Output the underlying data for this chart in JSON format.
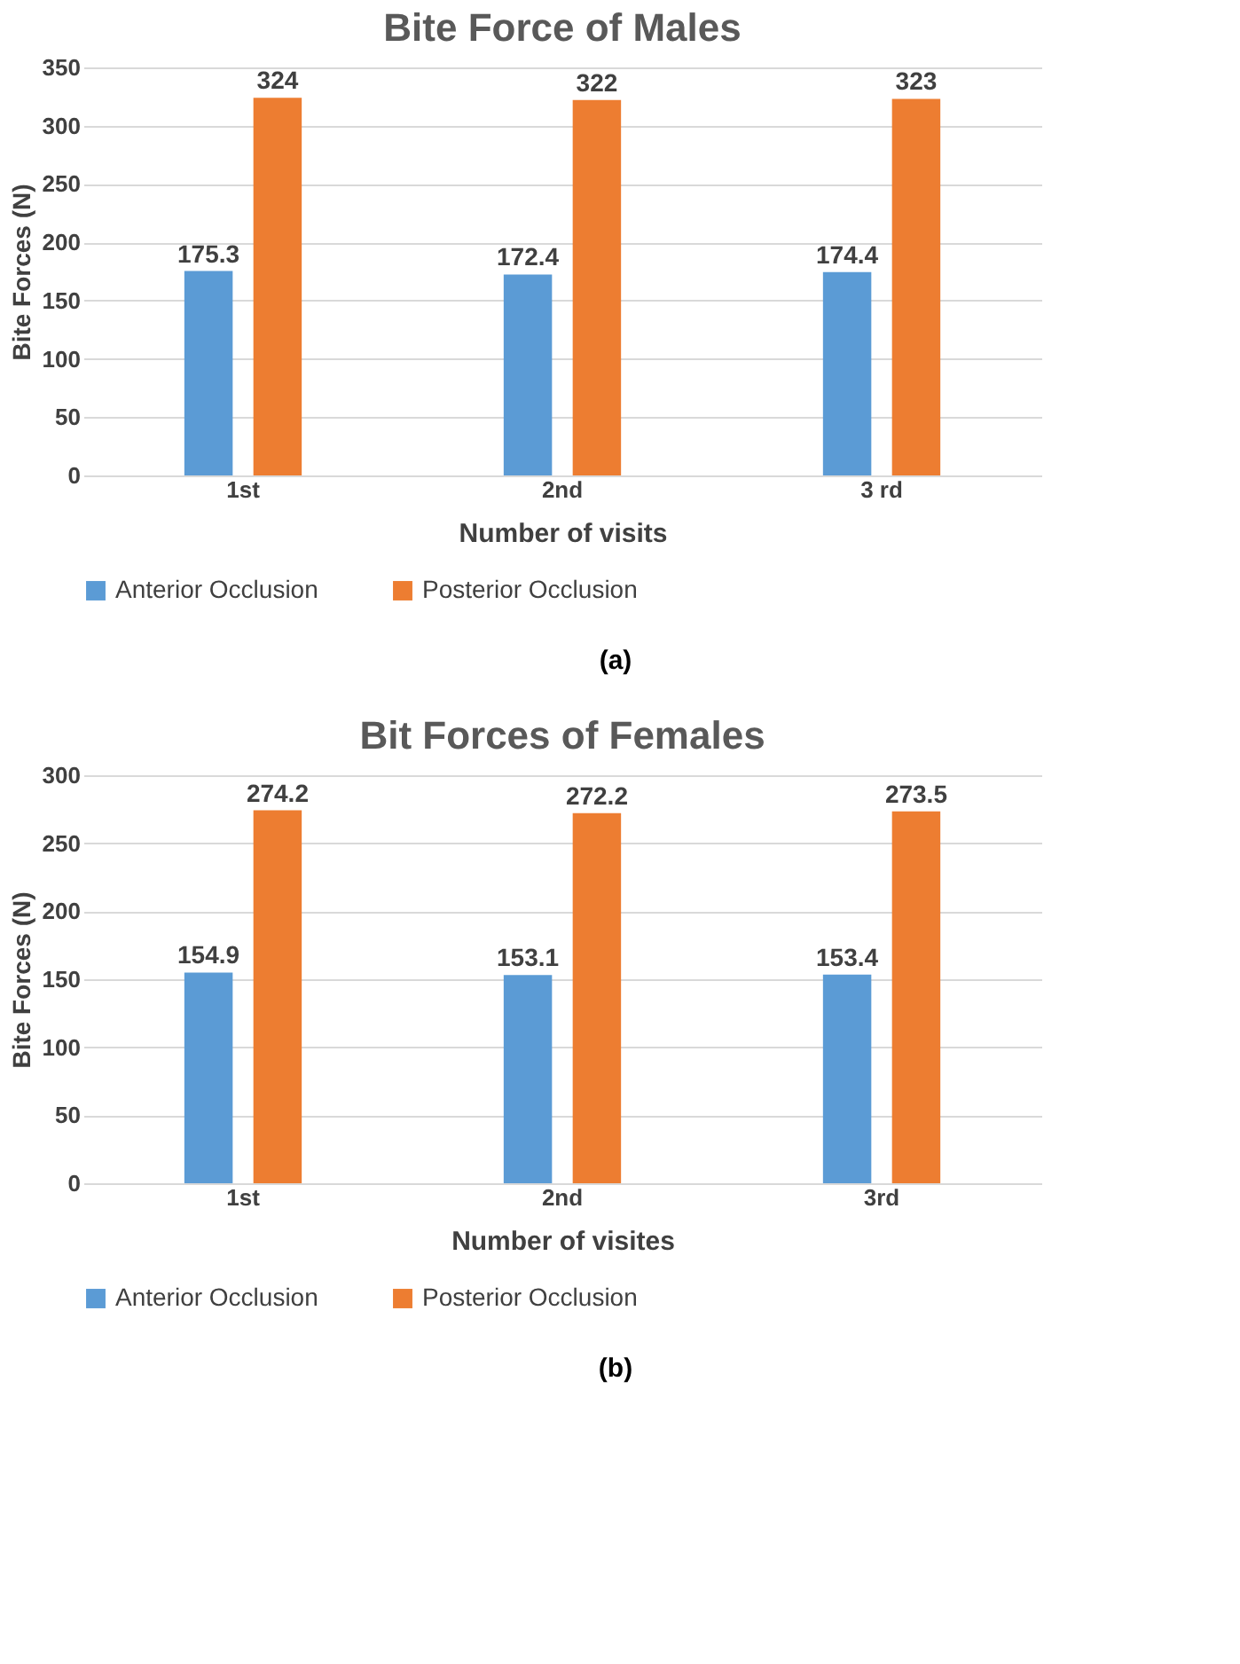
{
  "chart_data": [
    {
      "type": "bar",
      "title": "Bite Force of Males",
      "xlabel": "Number of visits",
      "ylabel": "Bite Forces (N)",
      "categories": [
        "1st",
        "2nd",
        "3 rd"
      ],
      "series": [
        {
          "name": "Anterior Occlusion",
          "color": "#5b9bd5",
          "values": [
            175.3,
            172.4,
            174.4
          ]
        },
        {
          "name": "Posterior Occlusion",
          "color": "#ed7d31",
          "values": [
            324,
            322,
            323
          ]
        }
      ],
      "ylim": [
        0,
        350
      ],
      "yticks": [
        0,
        50,
        100,
        150,
        200,
        250,
        300,
        350
      ],
      "grid": "y",
      "legend": "bottom",
      "data_labels": true,
      "annotations": [
        "(a)"
      ]
    },
    {
      "type": "bar",
      "title": "Bit Forces of Females",
      "xlabel": "Number of visites",
      "ylabel": "Bite Forces (N)",
      "categories": [
        "1st",
        "2nd",
        "3rd"
      ],
      "series": [
        {
          "name": "Anterior Occlusion",
          "color": "#5b9bd5",
          "values": [
            154.9,
            153.1,
            153.4
          ]
        },
        {
          "name": "Posterior Occlusion",
          "color": "#ed7d31",
          "values": [
            274.2,
            272.2,
            273.5
          ]
        }
      ],
      "ylim": [
        0,
        300
      ],
      "yticks": [
        0,
        50,
        100,
        150,
        200,
        250,
        300
      ],
      "grid": "y",
      "legend": "bottom",
      "data_labels": true,
      "annotations": [
        "(b)"
      ]
    }
  ]
}
